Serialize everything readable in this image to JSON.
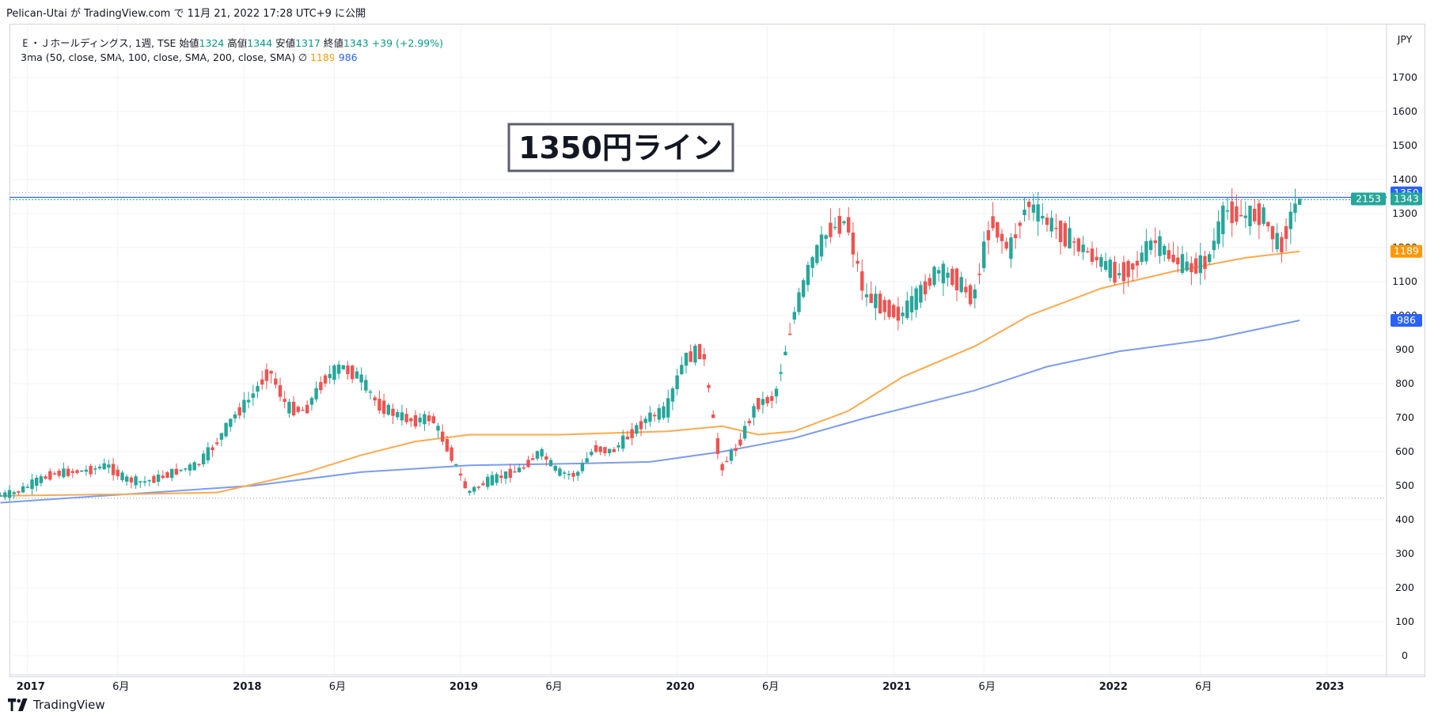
{
  "header": {
    "publish_line": "Pelican-Utai が TradingView.com で 11月 21, 2022 17:28 UTC+9 に公開"
  },
  "legend": {
    "symbol": "Ｅ・Ｊホールディングス, 1週, TSE",
    "open_label": "始値",
    "open": "1324",
    "high_label": "高値",
    "high": "1344",
    "low_label": "安値",
    "low": "1317",
    "close_label": "終値",
    "close": "1343",
    "change": "+39 (+2.99%)",
    "ma_title": "3ma (50, close, SMA, 100, close, SMA, 200, close, SMA)",
    "ma_symbol": "∅",
    "ma100_value": "1189",
    "ma200_value": "986"
  },
  "annotation": {
    "text": "1350円ライン"
  },
  "footer": {
    "brand": "TradingView"
  },
  "colors": {
    "up": "#26a69a",
    "down": "#ef5350",
    "ma100": "#ffa94d",
    "ma200": "#7c9cf0",
    "hline": "#2962ff"
  },
  "chart_data": {
    "type": "candlestick",
    "currency": "JPY",
    "ylim": [
      0,
      1750
    ],
    "y_ticks": [
      0,
      100,
      200,
      300,
      400,
      500,
      600,
      700,
      800,
      900,
      1000,
      1100,
      1200,
      1300,
      1400,
      1500,
      1600,
      1700
    ],
    "x_tick_labels": [
      "2017",
      "6月",
      "2018",
      "6月",
      "2019",
      "6月",
      "2020",
      "6月",
      "2021",
      "6月",
      "2022",
      "6月",
      "2023"
    ],
    "price_labels": {
      "line": "1350",
      "close": "1343",
      "countdown": "2153",
      "ma100": "1189",
      "ma200": "986"
    },
    "horizontal_lines": [
      1350,
      1343,
      1361,
      463
    ],
    "series": [
      {
        "name": "price",
        "points": [
          [
            "2016-11",
            470
          ],
          [
            "2016-12",
            480
          ],
          [
            "2017-01",
            510
          ],
          [
            "2017-02",
            535
          ],
          [
            "2017-03",
            540
          ],
          [
            "2017-04",
            545
          ],
          [
            "2017-05",
            560
          ],
          [
            "2017-06",
            520
          ],
          [
            "2017-07",
            510
          ],
          [
            "2017-08",
            525
          ],
          [
            "2017-09",
            545
          ],
          [
            "2017-10",
            560
          ],
          [
            "2017-11",
            620
          ],
          [
            "2017-12",
            700
          ],
          [
            "2018-01",
            760
          ],
          [
            "2018-02",
            840
          ],
          [
            "2018-03",
            730
          ],
          [
            "2018-04",
            720
          ],
          [
            "2018-05",
            810
          ],
          [
            "2018-06",
            850
          ],
          [
            "2018-07",
            820
          ],
          [
            "2018-08",
            740
          ],
          [
            "2018-09",
            710
          ],
          [
            "2018-10",
            690
          ],
          [
            "2018-11",
            700
          ],
          [
            "2018-12",
            600
          ],
          [
            "2019-01",
            480
          ],
          [
            "2019-02",
            510
          ],
          [
            "2019-03",
            530
          ],
          [
            "2019-04",
            550
          ],
          [
            "2019-05",
            600
          ],
          [
            "2019-06",
            540
          ],
          [
            "2019-07",
            530
          ],
          [
            "2019-08",
            610
          ],
          [
            "2019-09",
            600
          ],
          [
            "2019-10",
            650
          ],
          [
            "2019-11",
            700
          ],
          [
            "2019-12",
            720
          ],
          [
            "2020-01",
            870
          ],
          [
            "2020-02",
            900
          ],
          [
            "2020-03",
            550
          ],
          [
            "2020-04",
            620
          ],
          [
            "2020-05",
            740
          ],
          [
            "2020-06",
            760
          ],
          [
            "2020-07",
            990
          ],
          [
            "2020-08",
            1150
          ],
          [
            "2020-09",
            1250
          ],
          [
            "2020-10",
            1280
          ],
          [
            "2020-11",
            1060
          ],
          [
            "2020-12",
            1030
          ],
          [
            "2021-01",
            1000
          ],
          [
            "2021-02",
            1060
          ],
          [
            "2021-03",
            1130
          ],
          [
            "2021-04",
            1110
          ],
          [
            "2021-05",
            1050
          ],
          [
            "2021-06",
            1280
          ],
          [
            "2021-07",
            1190
          ],
          [
            "2021-08",
            1330
          ],
          [
            "2021-09",
            1280
          ],
          [
            "2021-10",
            1240
          ],
          [
            "2021-11",
            1200
          ],
          [
            "2021-12",
            1160
          ],
          [
            "2022-01",
            1120
          ],
          [
            "2022-02",
            1150
          ],
          [
            "2022-03",
            1220
          ],
          [
            "2022-04",
            1170
          ],
          [
            "2022-05",
            1140
          ],
          [
            "2022-06",
            1160
          ],
          [
            "2022-07",
            1310
          ],
          [
            "2022-08",
            1290
          ],
          [
            "2022-09",
            1300
          ],
          [
            "2022-10",
            1200
          ],
          [
            "2022-11",
            1343
          ]
        ]
      },
      {
        "name": "SMA 100",
        "points": [
          [
            "2016-11",
            470
          ],
          [
            "2017-06",
            475
          ],
          [
            "2017-11",
            480
          ],
          [
            "2018-04",
            540
          ],
          [
            "2018-07",
            590
          ],
          [
            "2018-10",
            630
          ],
          [
            "2019-01",
            650
          ],
          [
            "2019-06",
            650
          ],
          [
            "2019-12",
            660
          ],
          [
            "2020-03",
            675
          ],
          [
            "2020-05",
            650
          ],
          [
            "2020-07",
            660
          ],
          [
            "2020-10",
            720
          ],
          [
            "2021-01",
            820
          ],
          [
            "2021-05",
            910
          ],
          [
            "2021-08",
            1000
          ],
          [
            "2021-12",
            1080
          ],
          [
            "2022-04",
            1130
          ],
          [
            "2022-08",
            1170
          ],
          [
            "2022-11",
            1189
          ]
        ]
      },
      {
        "name": "SMA 200",
        "points": [
          [
            "2016-11",
            450
          ],
          [
            "2017-06",
            475
          ],
          [
            "2018-01",
            500
          ],
          [
            "2018-07",
            540
          ],
          [
            "2019-01",
            560
          ],
          [
            "2019-07",
            565
          ],
          [
            "2019-11",
            570
          ],
          [
            "2020-03",
            600
          ],
          [
            "2020-07",
            640
          ],
          [
            "2020-11",
            700
          ],
          [
            "2021-05",
            780
          ],
          [
            "2021-09",
            850
          ],
          [
            "2022-01",
            895
          ],
          [
            "2022-06",
            930
          ],
          [
            "2022-11",
            986
          ]
        ]
      }
    ]
  }
}
